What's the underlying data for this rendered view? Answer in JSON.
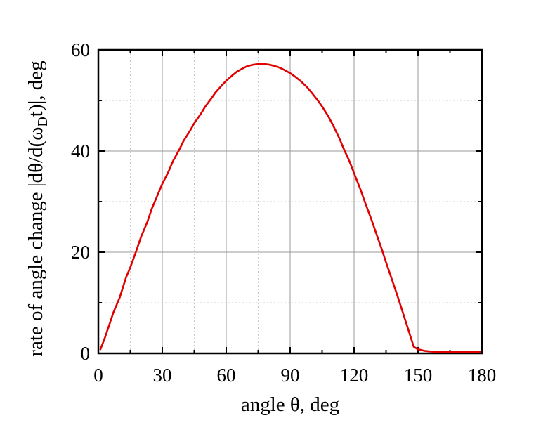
{
  "chart_data": {
    "type": "line",
    "xlabel": "angle θ, deg",
    "ylabel_parts": {
      "before_sub": "rate of angle change |dθ/d(ω",
      "sub": "D",
      "after_sub": "t)|, deg"
    },
    "xlim": [
      0,
      180
    ],
    "ylim": [
      0,
      60
    ],
    "xticks": [
      0,
      30,
      60,
      90,
      120,
      150,
      180
    ],
    "yticks": [
      0,
      20,
      40,
      60
    ],
    "grid": true,
    "series_color": "#e00000",
    "series": [
      {
        "x": [
          1,
          3,
          5,
          7,
          10,
          13,
          15,
          18,
          20,
          23,
          25,
          28,
          30,
          33,
          35,
          38,
          40,
          43,
          45,
          48,
          50,
          53,
          55,
          58,
          60,
          63,
          65,
          68,
          70,
          73,
          75,
          78,
          80,
          82,
          85,
          87,
          90,
          92,
          95,
          98,
          100,
          103,
          105,
          108,
          110,
          113,
          115,
          118,
          120,
          123,
          125,
          128,
          130,
          133,
          135,
          138,
          140,
          143,
          145,
          148,
          150,
          153,
          155,
          158,
          160,
          163,
          165,
          168,
          170,
          173,
          175,
          178,
          179
        ],
        "y": [
          0.8,
          3,
          5.5,
          8,
          11,
          15,
          17,
          20.5,
          23,
          26,
          28.5,
          31.5,
          33.5,
          36,
          38,
          40.3,
          42,
          44,
          45.5,
          47.3,
          48.7,
          50.4,
          51.6,
          53,
          53.9,
          55,
          55.7,
          56.4,
          56.8,
          57.1,
          57.2,
          57.2,
          57.1,
          56.9,
          56.5,
          56.1,
          55.4,
          54.8,
          53.8,
          52.6,
          51.6,
          50.0,
          48.8,
          46.8,
          45.2,
          42.6,
          40.6,
          37.8,
          35.6,
          32.4,
          30.0,
          26.6,
          24.2,
          20.6,
          18.0,
          14.3,
          11.8,
          7.9,
          5.3,
          1.3,
          0.8,
          0.5,
          0.4,
          0.3,
          0.3,
          0.3,
          0.3,
          0.3,
          0.3,
          0.3,
          0.3,
          0.3,
          0.3
        ]
      }
    ]
  }
}
